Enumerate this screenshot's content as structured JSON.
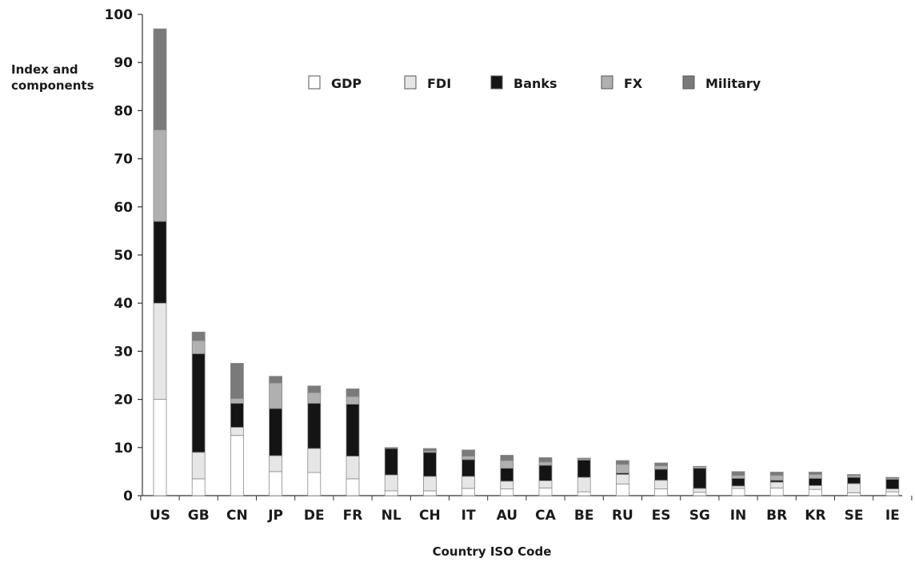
{
  "chart_data": {
    "type": "bar",
    "stacked": true,
    "xlabel": "Country ISO Code",
    "ylabel": [
      "Index and",
      "components"
    ],
    "ylim": [
      0,
      100
    ],
    "yticks": [
      0,
      10,
      20,
      30,
      40,
      50,
      60,
      70,
      80,
      90,
      100
    ],
    "grid": false,
    "legend_position": "top",
    "categories": [
      "US",
      "GB",
      "CN",
      "JP",
      "DE",
      "FR",
      "NL",
      "CH",
      "IT",
      "AU",
      "CA",
      "BE",
      "RU",
      "ES",
      "SG",
      "IN",
      "BR",
      "KR",
      "SE",
      "IE"
    ],
    "series": [
      {
        "name": "GDP",
        "color": "#ffffff",
        "values": [
          20,
          3.5,
          12.5,
          5,
          4.8,
          3.5,
          1,
          1,
          1.5,
          1.4,
          1.6,
          0.8,
          2.4,
          1.4,
          0.7,
          1.5,
          1.6,
          1.3,
          0.6,
          0.8
        ]
      },
      {
        "name": "FDI",
        "color": "#e6e6e6",
        "values": [
          20,
          5.5,
          1.7,
          3.3,
          5,
          4.7,
          3.3,
          3,
          2.5,
          1.6,
          1.5,
          3,
          2,
          1.8,
          0.8,
          0.5,
          1.2,
          0.8,
          1.9,
          0.6
        ]
      },
      {
        "name": "Banks",
        "color": "#141414",
        "values": [
          17,
          20.5,
          5,
          9.8,
          9.4,
          10.8,
          5.5,
          5,
          3.5,
          2.7,
          3.2,
          3.6,
          0.3,
          2.3,
          4.2,
          1.6,
          0.4,
          1.5,
          1.3,
          2
        ]
      },
      {
        "name": "FX",
        "color": "#b0b0b0",
        "values": [
          19,
          2.7,
          1,
          5.3,
          2.2,
          1.6,
          0,
          0.3,
          0.7,
          1.6,
          0.7,
          0.2,
          1.8,
          0.7,
          0.3,
          0.6,
          1,
          0.8,
          0.4,
          0.2
        ]
      },
      {
        "name": "Military",
        "color": "#7a7a7a",
        "values": [
          21,
          1.8,
          7.3,
          1.4,
          1.4,
          1.6,
          0.2,
          0.5,
          1.3,
          1.1,
          0.9,
          0.2,
          0.8,
          0.6,
          0.1,
          0.8,
          0.7,
          0.5,
          0.2,
          0.2
        ]
      }
    ]
  }
}
